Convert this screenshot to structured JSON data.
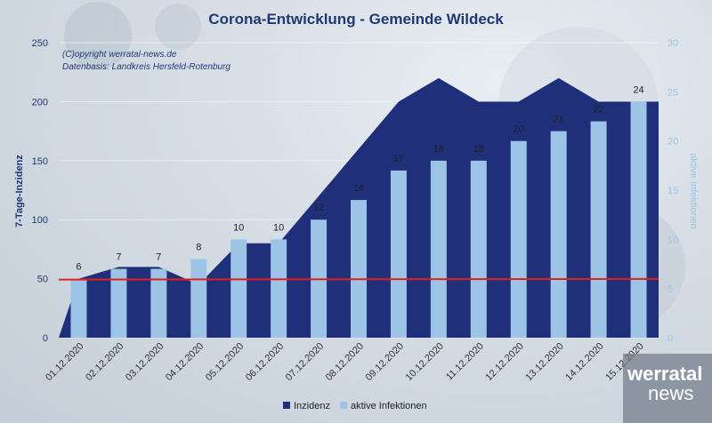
{
  "chart_data": {
    "type": "area",
    "title": "Corona-Entwicklung - Gemeinde Wildeck",
    "copyright": "(C)opyright werratal-news.de",
    "source": "Datenbasis: Landkreis Hersfeld-Rotenburg",
    "categories": [
      "01.12.2020",
      "02.12.2020",
      "03.12.2020",
      "04.12.2020",
      "05.12.2020",
      "06.12.2020",
      "07.12.2020",
      "08.12.2020",
      "09.12.2020",
      "10.12.2020",
      "11.12.2020",
      "12.12.2020",
      "13.12.2020",
      "14.12.2020",
      "15.12.2020"
    ],
    "ylabel": "7-Tage-Inzidenz",
    "y2label": "aktive Infektionen",
    "ylim": [
      0,
      250
    ],
    "y2lim": [
      0,
      30
    ],
    "yticks": [
      0,
      50,
      100,
      150,
      200,
      250
    ],
    "y2ticks": [
      0,
      5,
      10,
      15,
      20,
      25,
      30
    ],
    "series": [
      {
        "name": "Inzidenz",
        "type": "area",
        "axis": "left",
        "color": "#1f2f7a",
        "values": [
          50,
          60,
          60,
          45,
          80,
          80,
          120,
          160,
          200,
          220,
          200,
          200,
          220,
          200,
          200
        ]
      },
      {
        "name": "aktive Infektionen",
        "type": "bar",
        "axis": "right",
        "color": "#9dc3e6",
        "values": [
          6,
          7,
          7,
          8,
          10,
          10,
          12,
          14,
          17,
          18,
          18,
          20,
          21,
          22,
          24
        ],
        "labels": [
          "6",
          "7",
          "7",
          "8",
          "10",
          "10",
          "12",
          "14",
          "17",
          "18",
          "18",
          "20",
          "21",
          "22",
          "24"
        ]
      }
    ],
    "reference_line": {
      "value": 50,
      "axis": "left",
      "color": "#e0201b"
    },
    "legend_position": "bottom"
  },
  "logo": {
    "line1": "werratal",
    "line2": "news"
  }
}
